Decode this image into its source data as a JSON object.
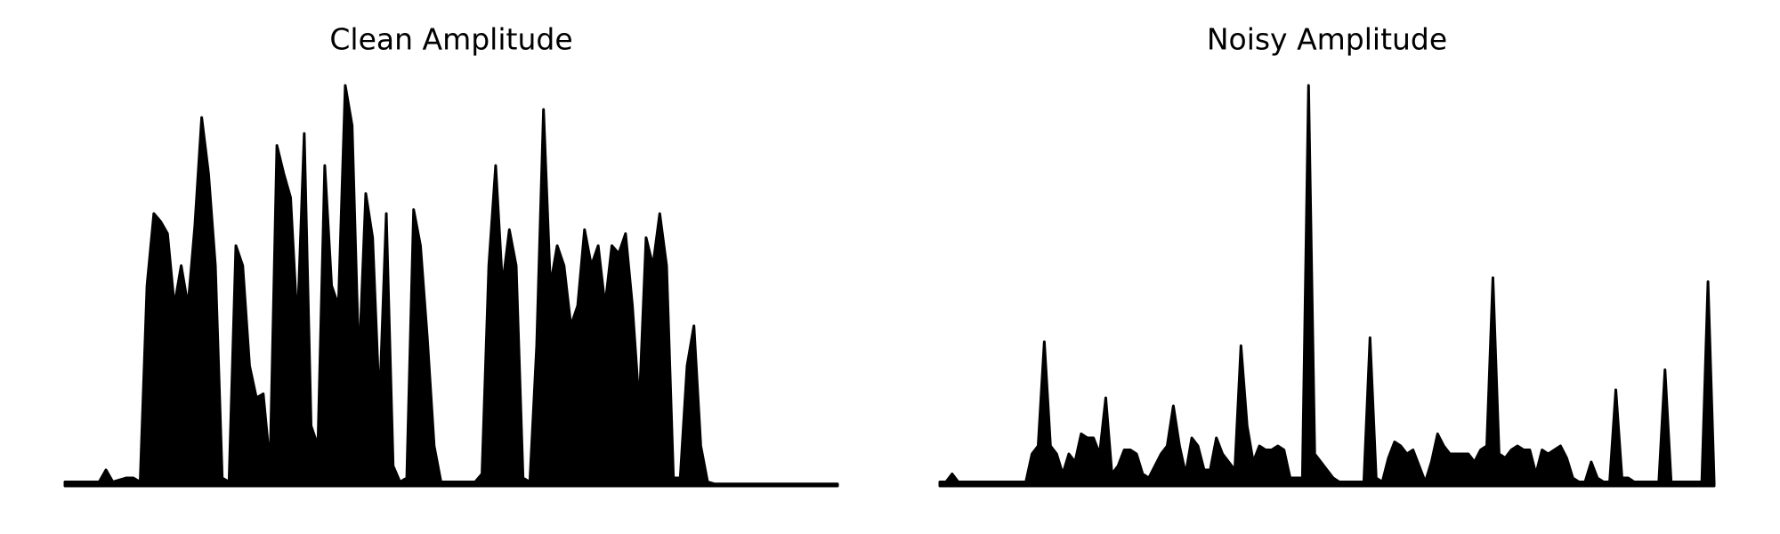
{
  "chart_data": [
    {
      "type": "area",
      "title": "Clean Amplitude",
      "color": "#000000",
      "ylim": [
        0,
        1
      ],
      "values": [
        0.01,
        0.01,
        0.01,
        0.01,
        0.01,
        0.01,
        0.04,
        0.01,
        0.015,
        0.02,
        0.02,
        0.01,
        0.5,
        0.68,
        0.66,
        0.63,
        0.45,
        0.55,
        0.45,
        0.65,
        0.92,
        0.78,
        0.55,
        0.02,
        0.01,
        0.6,
        0.55,
        0.3,
        0.22,
        0.23,
        0.05,
        0.85,
        0.78,
        0.72,
        0.4,
        0.88,
        0.15,
        0.1,
        0.8,
        0.5,
        0.45,
        1.0,
        0.9,
        0.3,
        0.73,
        0.62,
        0.2,
        0.68,
        0.05,
        0.01,
        0.02,
        0.69,
        0.6,
        0.37,
        0.1,
        0.01,
        0.01,
        0.01,
        0.01,
        0.01,
        0.01,
        0.03,
        0.55,
        0.8,
        0.5,
        0.64,
        0.55,
        0.02,
        0.01,
        0.35,
        0.94,
        0.5,
        0.6,
        0.55,
        0.4,
        0.45,
        0.64,
        0.55,
        0.6,
        0.45,
        0.6,
        0.58,
        0.63,
        0.45,
        0.2,
        0.62,
        0.55,
        0.68,
        0.55,
        0.02,
        0.02,
        0.3,
        0.4,
        0.1,
        0.01,
        0.005,
        0.005,
        0.005,
        0.005,
        0.005,
        0.005,
        0.005,
        0.005,
        0.005,
        0.005,
        0.005,
        0.005,
        0.005,
        0.005,
        0.005,
        0.005,
        0.005,
        0.005,
        0.005
      ]
    },
    {
      "type": "area",
      "title": "Noisy Amplitude",
      "color": "#000000",
      "ylim": [
        0,
        1
      ],
      "values": [
        0.01,
        0.01,
        0.03,
        0.01,
        0.01,
        0.01,
        0.01,
        0.01,
        0.01,
        0.01,
        0.01,
        0.01,
        0.01,
        0.01,
        0.01,
        0.08,
        0.1,
        0.36,
        0.1,
        0.08,
        0.03,
        0.08,
        0.06,
        0.13,
        0.12,
        0.12,
        0.08,
        0.22,
        0.03,
        0.05,
        0.09,
        0.09,
        0.08,
        0.03,
        0.02,
        0.05,
        0.08,
        0.1,
        0.2,
        0.1,
        0.03,
        0.12,
        0.1,
        0.04,
        0.04,
        0.12,
        0.08,
        0.06,
        0.04,
        0.35,
        0.15,
        0.06,
        0.1,
        0.09,
        0.09,
        0.1,
        0.09,
        0.02,
        0.02,
        0.02,
        1.0,
        0.08,
        0.06,
        0.04,
        0.02,
        0.01,
        0.01,
        0.01,
        0.01,
        0.01,
        0.37,
        0.02,
        0.01,
        0.07,
        0.11,
        0.1,
        0.08,
        0.09,
        0.05,
        0.01,
        0.06,
        0.13,
        0.1,
        0.08,
        0.08,
        0.08,
        0.08,
        0.06,
        0.09,
        0.1,
        0.52,
        0.08,
        0.07,
        0.09,
        0.1,
        0.09,
        0.09,
        0.03,
        0.09,
        0.08,
        0.09,
        0.1,
        0.07,
        0.02,
        0.01,
        0.01,
        0.06,
        0.02,
        0.01,
        0.01,
        0.24,
        0.02,
        0.02,
        0.01,
        0.01,
        0.01,
        0.01,
        0.01,
        0.29,
        0.01,
        0.01,
        0.01,
        0.01,
        0.01,
        0.01,
        0.51,
        0.01
      ]
    }
  ]
}
